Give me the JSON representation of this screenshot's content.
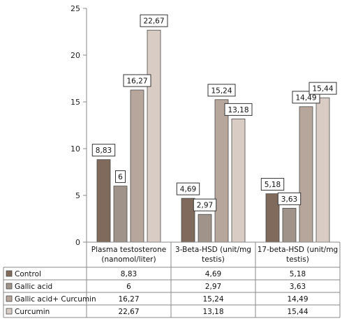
{
  "chart_data": {
    "type": "bar",
    "title": "",
    "xlabel": "",
    "ylabel": "",
    "ylim": [
      0,
      25
    ],
    "yticks": [
      0,
      5,
      10,
      15,
      20,
      25
    ],
    "grid": false,
    "legend": "data table below chart",
    "categories": [
      [
        "Plasma testosterone",
        "(nanomol/liter)"
      ],
      [
        "3-Beta-HSD (unit/mg",
        "testis)"
      ],
      [
        "17-beta-HSD (unit/mg",
        "testis)"
      ]
    ],
    "series": [
      {
        "name": "Control",
        "color": "#7f6a5c",
        "values": [
          8.83,
          4.69,
          5.18
        ],
        "labels": [
          "8,83",
          "4,69",
          "5,18"
        ]
      },
      {
        "name": "Gallic acid",
        "color": "#a0948a",
        "values": [
          6,
          2.97,
          3.63
        ],
        "labels": [
          "6",
          "2,97",
          "3,63"
        ]
      },
      {
        "name": "Gallic acid+ Curcumin",
        "color": "#b6a69c",
        "values": [
          16.27,
          15.24,
          14.49
        ],
        "labels": [
          "16,27",
          "15,24",
          "14,49"
        ]
      },
      {
        "name": "Curcumin",
        "color": "#d9ccc4",
        "values": [
          22.67,
          13.18,
          15.44
        ],
        "labels": [
          "22,67",
          "13,18",
          "15,44"
        ]
      }
    ]
  }
}
